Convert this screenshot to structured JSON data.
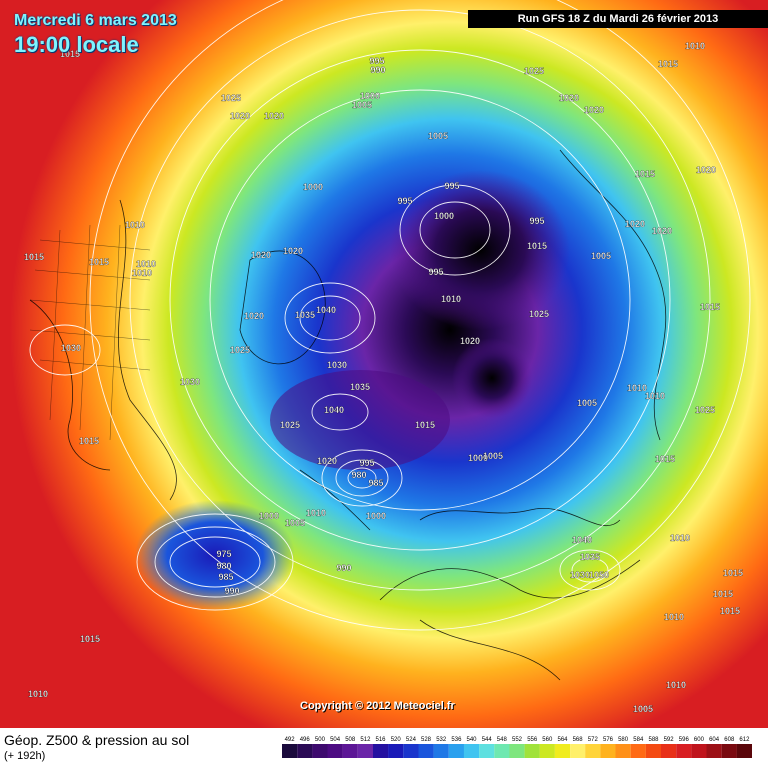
{
  "header": {
    "date": "Mercredi 6 mars 2013",
    "time": "19:00 locale",
    "run": "Run GFS 18 Z du Mardi 26 février 2013"
  },
  "footer": {
    "title": "Géop. Z500 & pression au sol",
    "lead": "(+ 192h)",
    "copyright": "Copyright © 2012 Meteociel.fr"
  },
  "scale": {
    "ticks": [
      "492",
      "496",
      "500",
      "504",
      "508",
      "512",
      "516",
      "520",
      "524",
      "528",
      "532",
      "536",
      "540",
      "544",
      "548",
      "552",
      "556",
      "560",
      "564",
      "568",
      "572",
      "576",
      "580",
      "584",
      "588",
      "592",
      "596",
      "600",
      "604",
      "608",
      "612"
    ],
    "colors": [
      "#1a0a3c",
      "#2a0a55",
      "#3d0a6e",
      "#4c0b82",
      "#5c1696",
      "#6a25a8",
      "#2410a0",
      "#1a1ab8",
      "#1a35cc",
      "#1a55dc",
      "#1f78e6",
      "#2aa0ee",
      "#40c4f0",
      "#5ee0e0",
      "#6ee8b0",
      "#7ee67e",
      "#a0e23a",
      "#cce822",
      "#f0ec1e",
      "#fff06a",
      "#ffd43a",
      "#ffb21e",
      "#ff9018",
      "#ff6a14",
      "#f44a12",
      "#e83018",
      "#d81e22",
      "#c0141c",
      "#9c1016",
      "#7a0a10",
      "#5a060a"
    ]
  },
  "isobars": [
    {
      "v": "1015",
      "col": 70,
      "row": 57
    },
    {
      "v": "1010",
      "col": 695,
      "row": 49
    },
    {
      "v": "1015",
      "col": 668,
      "row": 67
    },
    {
      "v": "1025",
      "col": 534,
      "row": 74
    },
    {
      "v": "995",
      "col": 377,
      "row": 64
    },
    {
      "v": "990",
      "col": 378,
      "row": 73
    },
    {
      "v": "1020",
      "col": 569,
      "row": 101
    },
    {
      "v": "1020",
      "col": 594,
      "row": 113
    },
    {
      "v": "1025",
      "col": 231,
      "row": 101
    },
    {
      "v": "1000",
      "col": 370,
      "row": 99
    },
    {
      "v": "1005",
      "col": 362,
      "row": 108
    },
    {
      "v": "1020",
      "col": 240,
      "row": 119
    },
    {
      "v": "1020",
      "col": 274,
      "row": 119
    },
    {
      "v": "1005",
      "col": 438,
      "row": 139
    },
    {
      "v": "1015",
      "col": 645,
      "row": 177
    },
    {
      "v": "1020",
      "col": 706,
      "row": 173
    },
    {
      "v": "1000",
      "col": 313,
      "row": 190
    },
    {
      "v": "995",
      "col": 452,
      "row": 189
    },
    {
      "v": "995",
      "col": 405,
      "row": 204
    },
    {
      "v": "1000",
      "col": 444,
      "row": 219
    },
    {
      "v": "995",
      "col": 537,
      "row": 224
    },
    {
      "v": "1020",
      "col": 635,
      "row": 227
    },
    {
      "v": "1020",
      "col": 662,
      "row": 234
    },
    {
      "v": "1010",
      "col": 135,
      "row": 228
    },
    {
      "v": "1015",
      "col": 537,
      "row": 249
    },
    {
      "v": "1005",
      "col": 601,
      "row": 259
    },
    {
      "v": "1020",
      "col": 261,
      "row": 258
    },
    {
      "v": "1020",
      "col": 293,
      "row": 254
    },
    {
      "v": "1015",
      "col": 34,
      "row": 260
    },
    {
      "v": "1015",
      "col": 99,
      "row": 265
    },
    {
      "v": "1010",
      "col": 146,
      "row": 267
    },
    {
      "v": "1010",
      "col": 142,
      "row": 276
    },
    {
      "v": "995",
      "col": 436,
      "row": 275
    },
    {
      "v": "1010",
      "col": 451,
      "row": 302
    },
    {
      "v": "1015",
      "col": 710,
      "row": 310
    },
    {
      "v": "1025",
      "col": 539,
      "row": 317
    },
    {
      "v": "1020",
      "col": 254,
      "row": 319
    },
    {
      "v": "1035",
      "col": 305,
      "row": 318
    },
    {
      "v": "1040",
      "col": 326,
      "row": 313
    },
    {
      "v": "1020",
      "col": 470,
      "row": 344
    },
    {
      "v": "1030",
      "col": 71,
      "row": 351
    },
    {
      "v": "1025",
      "col": 240,
      "row": 353
    },
    {
      "v": "1030",
      "col": 337,
      "row": 368
    },
    {
      "v": "1030",
      "col": 190,
      "row": 385
    },
    {
      "v": "1035",
      "col": 360,
      "row": 390
    },
    {
      "v": "1010",
      "col": 637,
      "row": 391
    },
    {
      "v": "1010",
      "col": 655,
      "row": 399
    },
    {
      "v": "1005",
      "col": 587,
      "row": 406
    },
    {
      "v": "1025",
      "col": 705,
      "row": 413
    },
    {
      "v": "1040",
      "col": 334,
      "row": 413
    },
    {
      "v": "1025",
      "col": 290,
      "row": 428
    },
    {
      "v": "1015",
      "col": 425,
      "row": 428
    },
    {
      "v": "1015",
      "col": 89,
      "row": 444
    },
    {
      "v": "1000",
      "col": 478,
      "row": 461
    },
    {
      "v": "1005",
      "col": 493,
      "row": 459
    },
    {
      "v": "1015",
      "col": 665,
      "row": 462
    },
    {
      "v": "995",
      "col": 367,
      "row": 466
    },
    {
      "v": "1020",
      "col": 327,
      "row": 464
    },
    {
      "v": "980",
      "col": 359,
      "row": 478
    },
    {
      "v": "985",
      "col": 376,
      "row": 486
    },
    {
      "v": "1010",
      "col": 316,
      "row": 516
    },
    {
      "v": "1000",
      "col": 376,
      "row": 519
    },
    {
      "v": "1000",
      "col": 269,
      "row": 519
    },
    {
      "v": "1005",
      "col": 295,
      "row": 526
    },
    {
      "v": "1040",
      "col": 582,
      "row": 543
    },
    {
      "v": "1010",
      "col": 680,
      "row": 541
    },
    {
      "v": "975",
      "col": 224,
      "row": 557
    },
    {
      "v": "1035",
      "col": 590,
      "row": 560
    },
    {
      "v": "980",
      "col": 224,
      "row": 569
    },
    {
      "v": "990",
      "col": 344,
      "row": 571
    },
    {
      "v": "1030",
      "col": 580,
      "row": 578
    },
    {
      "v": "1050",
      "col": 599,
      "row": 578
    },
    {
      "v": "985",
      "col": 226,
      "row": 580
    },
    {
      "v": "1015",
      "col": 733,
      "row": 576
    },
    {
      "v": "990",
      "col": 232,
      "row": 594
    },
    {
      "v": "1015",
      "col": 723,
      "row": 597
    },
    {
      "v": "1015",
      "col": 730,
      "row": 614
    },
    {
      "v": "1015",
      "col": 90,
      "row": 642
    },
    {
      "v": "1010",
      "col": 674,
      "row": 620
    },
    {
      "v": "1010",
      "col": 676,
      "row": 688
    },
    {
      "v": "1010",
      "col": 38,
      "row": 697
    },
    {
      "v": "1005",
      "col": 643,
      "row": 712
    }
  ]
}
